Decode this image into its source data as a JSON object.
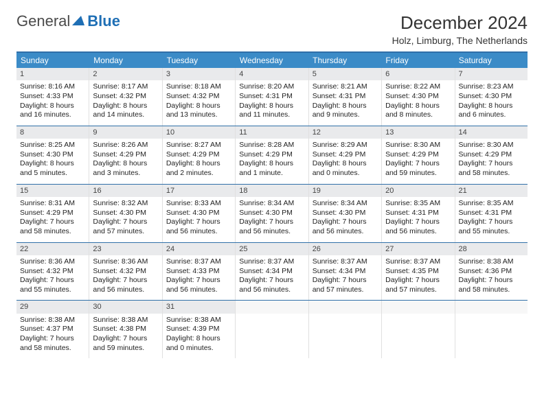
{
  "brand": {
    "part1": "General",
    "part2": "Blue",
    "blue_color": "#1f6fb5",
    "gray_color": "#4a4a4a"
  },
  "header": {
    "title": "December 2024",
    "location": "Holz, Limburg, The Netherlands"
  },
  "colors": {
    "header_bg": "#3b8bc7",
    "border": "#2f6fa8",
    "daynum_bg": "#e9eaec"
  },
  "day_headers": [
    "Sunday",
    "Monday",
    "Tuesday",
    "Wednesday",
    "Thursday",
    "Friday",
    "Saturday"
  ],
  "weeks": [
    [
      {
        "n": "1",
        "sunrise": "Sunrise: 8:16 AM",
        "sunset": "Sunset: 4:33 PM",
        "day1": "Daylight: 8 hours",
        "day2": "and 16 minutes."
      },
      {
        "n": "2",
        "sunrise": "Sunrise: 8:17 AM",
        "sunset": "Sunset: 4:32 PM",
        "day1": "Daylight: 8 hours",
        "day2": "and 14 minutes."
      },
      {
        "n": "3",
        "sunrise": "Sunrise: 8:18 AM",
        "sunset": "Sunset: 4:32 PM",
        "day1": "Daylight: 8 hours",
        "day2": "and 13 minutes."
      },
      {
        "n": "4",
        "sunrise": "Sunrise: 8:20 AM",
        "sunset": "Sunset: 4:31 PM",
        "day1": "Daylight: 8 hours",
        "day2": "and 11 minutes."
      },
      {
        "n": "5",
        "sunrise": "Sunrise: 8:21 AM",
        "sunset": "Sunset: 4:31 PM",
        "day1": "Daylight: 8 hours",
        "day2": "and 9 minutes."
      },
      {
        "n": "6",
        "sunrise": "Sunrise: 8:22 AM",
        "sunset": "Sunset: 4:30 PM",
        "day1": "Daylight: 8 hours",
        "day2": "and 8 minutes."
      },
      {
        "n": "7",
        "sunrise": "Sunrise: 8:23 AM",
        "sunset": "Sunset: 4:30 PM",
        "day1": "Daylight: 8 hours",
        "day2": "and 6 minutes."
      }
    ],
    [
      {
        "n": "8",
        "sunrise": "Sunrise: 8:25 AM",
        "sunset": "Sunset: 4:30 PM",
        "day1": "Daylight: 8 hours",
        "day2": "and 5 minutes."
      },
      {
        "n": "9",
        "sunrise": "Sunrise: 8:26 AM",
        "sunset": "Sunset: 4:29 PM",
        "day1": "Daylight: 8 hours",
        "day2": "and 3 minutes."
      },
      {
        "n": "10",
        "sunrise": "Sunrise: 8:27 AM",
        "sunset": "Sunset: 4:29 PM",
        "day1": "Daylight: 8 hours",
        "day2": "and 2 minutes."
      },
      {
        "n": "11",
        "sunrise": "Sunrise: 8:28 AM",
        "sunset": "Sunset: 4:29 PM",
        "day1": "Daylight: 8 hours",
        "day2": "and 1 minute."
      },
      {
        "n": "12",
        "sunrise": "Sunrise: 8:29 AM",
        "sunset": "Sunset: 4:29 PM",
        "day1": "Daylight: 8 hours",
        "day2": "and 0 minutes."
      },
      {
        "n": "13",
        "sunrise": "Sunrise: 8:30 AM",
        "sunset": "Sunset: 4:29 PM",
        "day1": "Daylight: 7 hours",
        "day2": "and 59 minutes."
      },
      {
        "n": "14",
        "sunrise": "Sunrise: 8:30 AM",
        "sunset": "Sunset: 4:29 PM",
        "day1": "Daylight: 7 hours",
        "day2": "and 58 minutes."
      }
    ],
    [
      {
        "n": "15",
        "sunrise": "Sunrise: 8:31 AM",
        "sunset": "Sunset: 4:29 PM",
        "day1": "Daylight: 7 hours",
        "day2": "and 58 minutes."
      },
      {
        "n": "16",
        "sunrise": "Sunrise: 8:32 AM",
        "sunset": "Sunset: 4:30 PM",
        "day1": "Daylight: 7 hours",
        "day2": "and 57 minutes."
      },
      {
        "n": "17",
        "sunrise": "Sunrise: 8:33 AM",
        "sunset": "Sunset: 4:30 PM",
        "day1": "Daylight: 7 hours",
        "day2": "and 56 minutes."
      },
      {
        "n": "18",
        "sunrise": "Sunrise: 8:34 AM",
        "sunset": "Sunset: 4:30 PM",
        "day1": "Daylight: 7 hours",
        "day2": "and 56 minutes."
      },
      {
        "n": "19",
        "sunrise": "Sunrise: 8:34 AM",
        "sunset": "Sunset: 4:30 PM",
        "day1": "Daylight: 7 hours",
        "day2": "and 56 minutes."
      },
      {
        "n": "20",
        "sunrise": "Sunrise: 8:35 AM",
        "sunset": "Sunset: 4:31 PM",
        "day1": "Daylight: 7 hours",
        "day2": "and 56 minutes."
      },
      {
        "n": "21",
        "sunrise": "Sunrise: 8:35 AM",
        "sunset": "Sunset: 4:31 PM",
        "day1": "Daylight: 7 hours",
        "day2": "and 55 minutes."
      }
    ],
    [
      {
        "n": "22",
        "sunrise": "Sunrise: 8:36 AM",
        "sunset": "Sunset: 4:32 PM",
        "day1": "Daylight: 7 hours",
        "day2": "and 55 minutes."
      },
      {
        "n": "23",
        "sunrise": "Sunrise: 8:36 AM",
        "sunset": "Sunset: 4:32 PM",
        "day1": "Daylight: 7 hours",
        "day2": "and 56 minutes."
      },
      {
        "n": "24",
        "sunrise": "Sunrise: 8:37 AM",
        "sunset": "Sunset: 4:33 PM",
        "day1": "Daylight: 7 hours",
        "day2": "and 56 minutes."
      },
      {
        "n": "25",
        "sunrise": "Sunrise: 8:37 AM",
        "sunset": "Sunset: 4:34 PM",
        "day1": "Daylight: 7 hours",
        "day2": "and 56 minutes."
      },
      {
        "n": "26",
        "sunrise": "Sunrise: 8:37 AM",
        "sunset": "Sunset: 4:34 PM",
        "day1": "Daylight: 7 hours",
        "day2": "and 57 minutes."
      },
      {
        "n": "27",
        "sunrise": "Sunrise: 8:37 AM",
        "sunset": "Sunset: 4:35 PM",
        "day1": "Daylight: 7 hours",
        "day2": "and 57 minutes."
      },
      {
        "n": "28",
        "sunrise": "Sunrise: 8:38 AM",
        "sunset": "Sunset: 4:36 PM",
        "day1": "Daylight: 7 hours",
        "day2": "and 58 minutes."
      }
    ],
    [
      {
        "n": "29",
        "sunrise": "Sunrise: 8:38 AM",
        "sunset": "Sunset: 4:37 PM",
        "day1": "Daylight: 7 hours",
        "day2": "and 58 minutes."
      },
      {
        "n": "30",
        "sunrise": "Sunrise: 8:38 AM",
        "sunset": "Sunset: 4:38 PM",
        "day1": "Daylight: 7 hours",
        "day2": "and 59 minutes."
      },
      {
        "n": "31",
        "sunrise": "Sunrise: 8:38 AM",
        "sunset": "Sunset: 4:39 PM",
        "day1": "Daylight: 8 hours",
        "day2": "and 0 minutes."
      },
      null,
      null,
      null,
      null
    ]
  ]
}
